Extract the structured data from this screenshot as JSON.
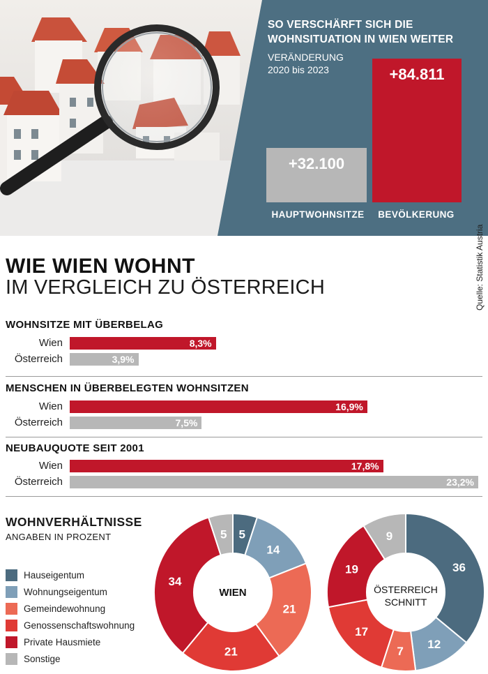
{
  "header": {
    "title_line1": "SO VERSCHÄRFT SICH DIE",
    "title_line2": "WOHNSITUATION IN WIEN WEITER",
    "subtitle_line1": "VERÄNDERUNG",
    "subtitle_line2": "2020 bis 2023"
  },
  "colors": {
    "teal": "#4d6f82",
    "red": "#c0172a",
    "grey": "#b7b7b7",
    "hauseigentum": "#4c6b7f",
    "wohnungseigentum": "#7f9fb8",
    "gemeindewohnung": "#ec6a55",
    "genossenschaftswohnung": "#e03a35",
    "private_hausmiete": "#c0172a",
    "sonstige": "#b7b7b7"
  },
  "headline": {
    "title": "WIE WIEN WOHNT",
    "subtitle": "IM VERGLEICH ZU ÖSTERREICH",
    "source": "Quelle: Statistik Austria"
  },
  "sections": [
    {
      "title": "WOHNSITZE MIT ÜBERBELAG",
      "rows": [
        {
          "label": "Wien",
          "value_label": "8,3%"
        },
        {
          "label": "Österreich",
          "value_label": "3,9%"
        }
      ]
    },
    {
      "title": "MENSCHEN IN ÜBERBELEGTEN WOHNSITZEN",
      "rows": [
        {
          "label": "Wien",
          "value_label": "16,9%"
        },
        {
          "label": "Österreich",
          "value_label": "7,5%"
        }
      ]
    },
    {
      "title": "NEUBAUQUOTE SEIT 2001",
      "rows": [
        {
          "label": "Wien",
          "value_label": "17,8%"
        },
        {
          "label": "Österreich",
          "value_label": "23,2%"
        }
      ]
    }
  ],
  "wohnverhaeltnisse": {
    "title": "WOHNVERHÄLTNISSE",
    "subtitle": "ANGABEN IN PROZENT",
    "legend": [
      "Hauseigentum",
      "Wohnungseigentum",
      "Gemeindewohnung",
      "Genossenschaftswohnung",
      "Private Hausmiete",
      "Sonstige"
    ],
    "wien_center": "WIEN",
    "oesterreich_center_line1": "ÖSTERREICH",
    "oesterreich_center_line2": "SCHNITT"
  },
  "chart_data": [
    {
      "type": "bar",
      "title": "SO VERSCHÄRFT SICH DIE WOHNSITUATION IN WIEN WEITER",
      "subtitle": "VERÄNDERUNG 2020 bis 2023",
      "categories": [
        "HAUPTWOHNSITZE",
        "BEVÖLKERUNG"
      ],
      "values": [
        32100,
        84811
      ],
      "value_labels": [
        "+32.100",
        "+84.811"
      ]
    },
    {
      "type": "bar",
      "title": "WOHNSITZE MIT ÜBERBELAG",
      "orientation": "horizontal",
      "categories": [
        "Wien",
        "Österreich"
      ],
      "values": [
        8.3,
        3.9
      ],
      "unit": "%"
    },
    {
      "type": "bar",
      "title": "MENSCHEN IN ÜBERBELEGTEN WOHNSITZEN",
      "orientation": "horizontal",
      "categories": [
        "Wien",
        "Österreich"
      ],
      "values": [
        16.9,
        7.5
      ],
      "unit": "%"
    },
    {
      "type": "bar",
      "title": "NEUBAUQUOTE SEIT 2001",
      "orientation": "horizontal",
      "categories": [
        "Wien",
        "Österreich"
      ],
      "values": [
        17.8,
        23.2
      ],
      "unit": "%"
    },
    {
      "type": "pie",
      "title": "WIEN",
      "categories": [
        "Hauseigentum",
        "Wohnungseigentum",
        "Gemeindewohnung",
        "Genossenschaftswohnung",
        "Private Hausmiete",
        "Sonstige"
      ],
      "values": [
        5,
        14,
        21,
        21,
        34,
        5
      ]
    },
    {
      "type": "pie",
      "title": "ÖSTERREICH SCHNITT",
      "categories": [
        "Hauseigentum",
        "Wohnungseigentum",
        "Gemeindewohnung",
        "Genossenschaftswohnung",
        "Private Hausmiete",
        "Sonstige"
      ],
      "values": [
        36,
        12,
        7,
        17,
        19,
        9
      ]
    }
  ]
}
